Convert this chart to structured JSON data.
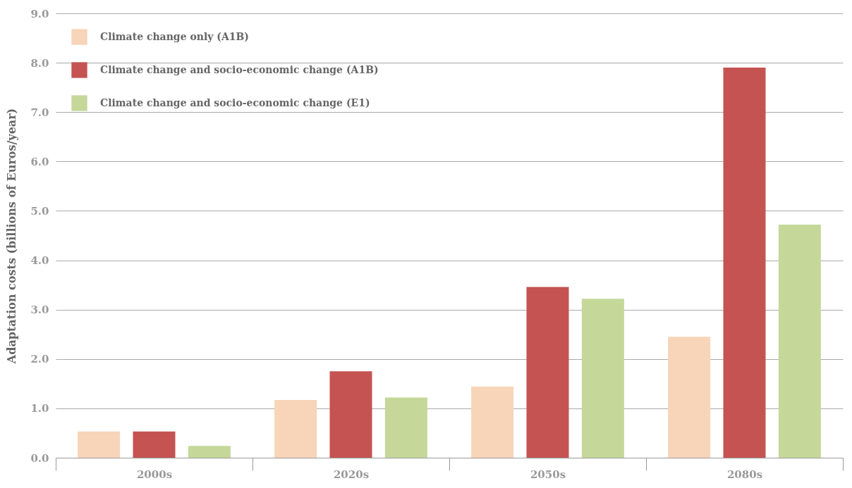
{
  "chart_data": {
    "type": "bar",
    "ylabel": "Adaptation costs (billions of Euros/year)",
    "categories": [
      "2000s",
      "2020s",
      "2050s",
      "2080s"
    ],
    "series": [
      {
        "name": "Climate change only (A1B)",
        "color": "#f8d4b8",
        "values": [
          0.53,
          1.17,
          1.44,
          2.45
        ]
      },
      {
        "name": "Climate change and socio-economic change (A1B)",
        "color": "#c45352",
        "values": [
          0.53,
          1.75,
          3.46,
          7.9
        ]
      },
      {
        "name": "Climate change and socio-economic change (E1)",
        "color": "#c5d89a",
        "values": [
          0.24,
          1.22,
          3.22,
          4.72
        ]
      }
    ],
    "ylim": [
      0,
      9
    ],
    "yticks": [
      {
        "value": 0,
        "label": "0.0"
      },
      {
        "value": 1,
        "label": "1.0"
      },
      {
        "value": 2,
        "label": "2.0"
      },
      {
        "value": 3,
        "label": "3.0"
      },
      {
        "value": 4,
        "label": "4.0"
      },
      {
        "value": 5,
        "label": "5.0"
      },
      {
        "value": 6,
        "label": "6.0"
      },
      {
        "value": 7,
        "label": "7.0"
      },
      {
        "value": 8,
        "label": "8.0"
      },
      {
        "value": 9,
        "label": "9.0"
      }
    ],
    "grid": "y",
    "legend": "top left"
  }
}
